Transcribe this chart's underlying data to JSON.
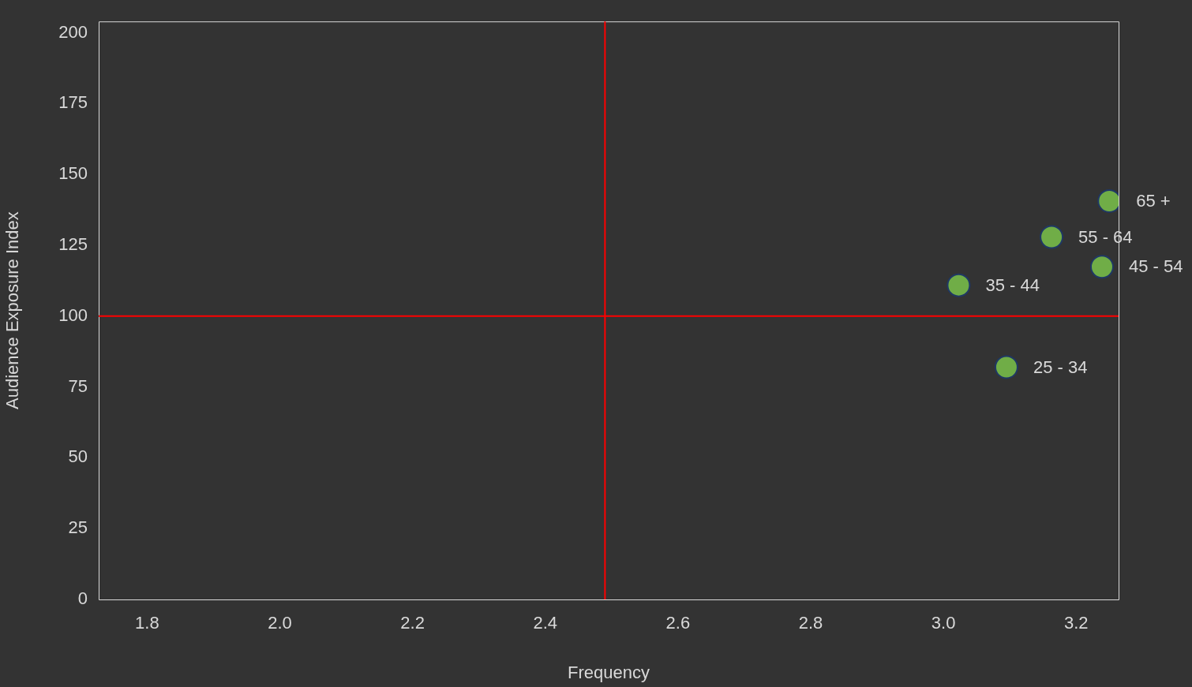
{
  "chart_data": {
    "type": "scatter",
    "xlabel": "Frequency",
    "ylabel": "Audience Exposure Index",
    "x": [
      3.25,
      3.163,
      3.239,
      3.023,
      3.095
    ],
    "series": [
      {
        "color": "#70ad47",
        "values": [
          140.6,
          127.9,
          117.4,
          110.9,
          82
        ]
      }
    ],
    "annotations": [
      {
        "text": "65 +",
        "x": 3.25,
        "y": 140.6
      },
      {
        "text": "55 - 64",
        "x": 3.163,
        "y": 127.9
      },
      {
        "text": "45 - 54",
        "x": 3.239,
        "y": 117.4
      },
      {
        "text": "35 - 44",
        "x": 3.023,
        "y": 110.9
      },
      {
        "text": "25 - 34",
        "x": 3.095,
        "y": 82
      }
    ],
    "xlim": [
      1.727,
      3.264
    ],
    "xticks": [
      {
        "value": 1.8,
        "label": "1.8"
      },
      {
        "value": 2,
        "label": "2.0"
      },
      {
        "value": 2.2,
        "label": "2.2"
      },
      {
        "value": 2.4,
        "label": "2.4"
      },
      {
        "value": 2.6,
        "label": "2.6"
      },
      {
        "value": 2.8,
        "label": "2.8"
      },
      {
        "value": 3,
        "label": "3.0"
      },
      {
        "value": 3.2,
        "label": "3.2"
      }
    ],
    "ylim": [
      0,
      204
    ],
    "yticks": [
      0,
      25,
      50,
      75,
      100,
      125,
      150,
      175,
      200
    ],
    "ref_lines": [
      {
        "axis": "x",
        "value": 2.49,
        "color": "#ff0000"
      },
      {
        "axis": "y",
        "value": 100,
        "color": "#ff0000"
      }
    ],
    "grid": false,
    "legend": false,
    "marker": "circle"
  }
}
